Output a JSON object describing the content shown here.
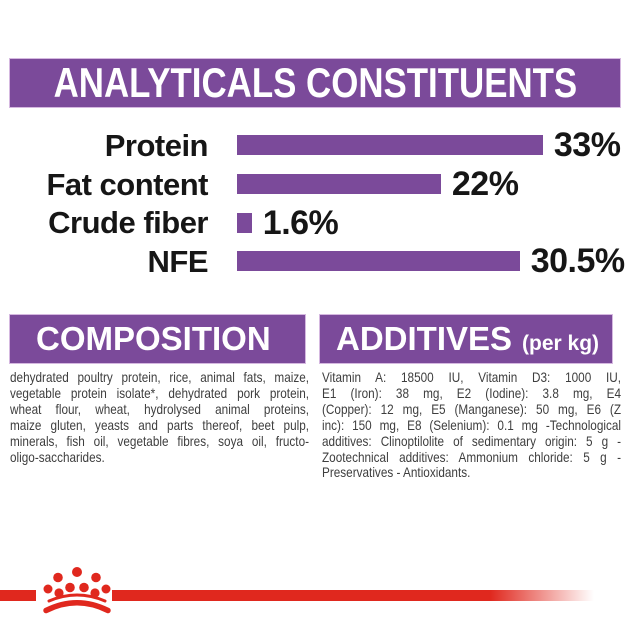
{
  "colors": {
    "purple": "#7b4a9a",
    "red": "#e0281e",
    "body_text": "#3e3e3e",
    "chart_text": "#161616",
    "banner_text": "#ffffff"
  },
  "header": {
    "title": "ANALYTICALS CONSTITUENTS"
  },
  "chart_data": {
    "type": "bar",
    "orientation": "horizontal",
    "title": "ANALYTICALS CONSTITUENTS",
    "categories": [
      "Protein",
      "Fat content",
      "Crude fiber",
      "NFE"
    ],
    "values": [
      33,
      22,
      1.6,
      30.5
    ],
    "value_labels": [
      "33%",
      "22%",
      "1.6%",
      "30.5%"
    ],
    "unit": "%",
    "xlim": [
      0,
      34
    ],
    "grid": false,
    "axis": "none",
    "bar_color": "#7b4a9a"
  },
  "composition": {
    "title": "COMPOSITION",
    "lines": [
      "dehydrated poultry protein, rice, animal fats, maize,",
      "vegetable protein isolate*, dehydrated pork protein,",
      "wheat flour, wheat, hydrolysed animal proteins,",
      "maize gluten, yeasts and parts thereof, beet pulp,",
      "minerals, fish oil, vegetable fibres, soya oil, fructo-",
      "oligo-saccharides."
    ],
    "full_text": "dehydrated poultry protein, rice, animal fats, maize, vegetable protein isolate*, dehydrated pork protein, wheat flour, wheat, hydrolysed animal proteins, maize gluten, yeasts and parts thereof, beet pulp, minerals, fish oil, vegetable fibres, soya oil, fructo-oligo-saccharides."
  },
  "additives": {
    "title": "ADDITIVES",
    "title_suffix": "(per kg)",
    "lines": [
      "Vitamin A: 18500 IU, Vitamin D3: 1000 IU,",
      "E1 (Iron): 38 mg, E2 (Iodine): 3.8 mg, E4",
      "(Copper): 12 mg, E5 (Manganese): 50 mg, E6 (Z",
      "inc): 150 mg, E8 (Selenium): 0.1 mg -Technological",
      "additives: Clinoptilolite of sedimentary origin: 5 g -",
      "Zootechnical additives: Ammonium chloride: 5 g -",
      "Preservatives - Antioxidants."
    ],
    "full_text": "Vitamin A: 18500 IU, Vitamin D3: 1000 IU, E1 (Iron): 38 mg, E2 (Iodine): 3.8 mg, E4 (Copper): 12 mg, E5 (Manganese): 50 mg, E6 (Zinc): 150 mg, E8 (Selenium): 0.1 mg -Technological additives: Clinoptilolite of sedimentary origin: 5 g - Zootechnical additives: Ammonium chloride: 5 g - Preservatives - Antioxidants."
  },
  "footer": {
    "logo": "royal-canin-crown"
  }
}
